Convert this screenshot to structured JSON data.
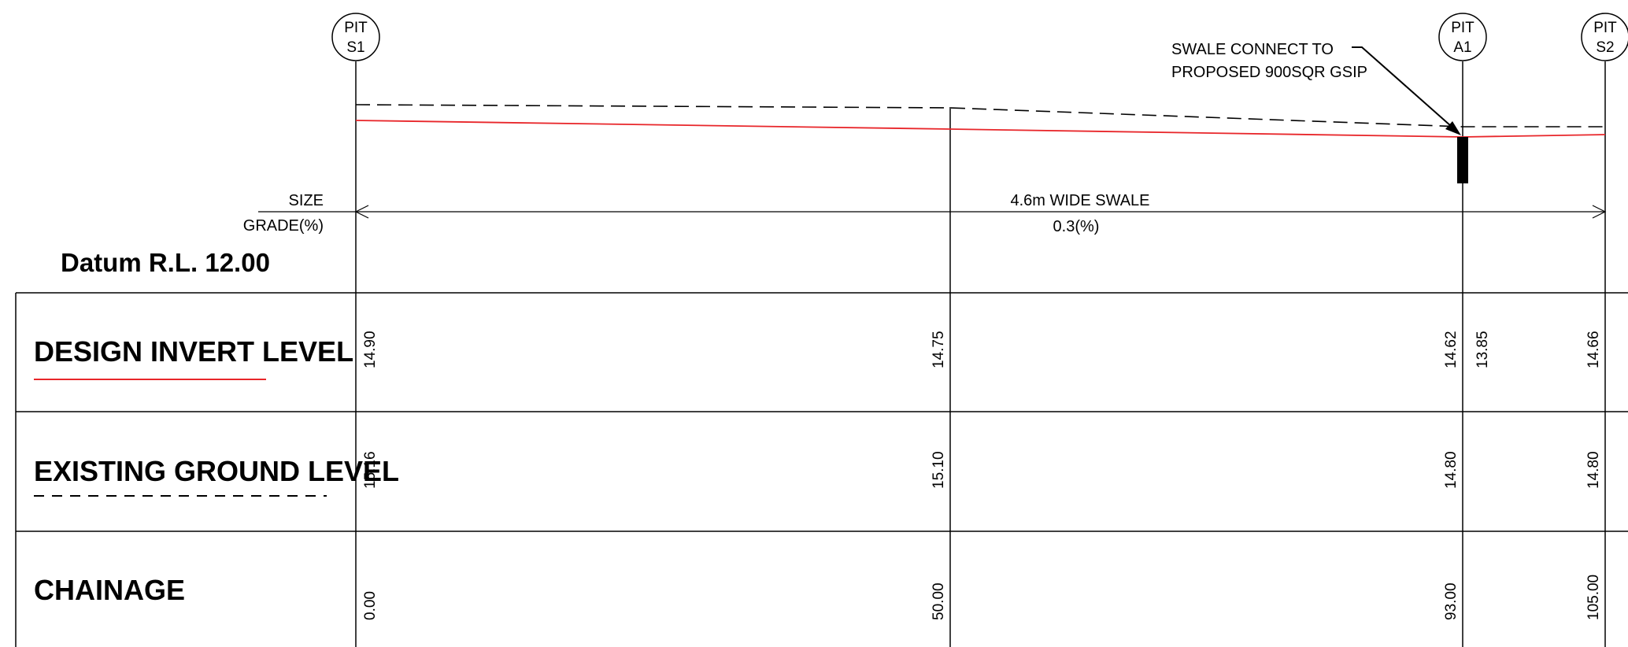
{
  "pits": [
    {
      "line1": "PIT",
      "line2": "S1"
    },
    {
      "line1": "PIT",
      "line2": "A1"
    },
    {
      "line1": "PIT",
      "line2": "S2"
    }
  ],
  "annotation": {
    "line1": "SWALE CONNECT TO",
    "line2": "PROPOSED 900SQR GSIP"
  },
  "size_label": "SIZE",
  "grade_label": "GRADE(%)",
  "swale_size": "4.6m WIDE SWALE",
  "swale_grade": "0.3(%)",
  "datum": "Datum R.L. 12.00",
  "rows": {
    "design_invert": {
      "label": "DESIGN INVERT LEVEL",
      "values": [
        "14.90",
        "14.75",
        "14.62",
        "13.85",
        "14.66"
      ]
    },
    "existing_ground": {
      "label": "EXISTING GROUND LEVEL",
      "values": [
        "15.16",
        "15.10",
        "14.80",
        "14.80"
      ]
    },
    "chainage": {
      "label": "CHAINAGE",
      "values": [
        "0.00",
        "50.00",
        "93.00",
        "105.00"
      ]
    }
  },
  "colors": {
    "design_line": "#e8262a",
    "ink": "#000000"
  }
}
